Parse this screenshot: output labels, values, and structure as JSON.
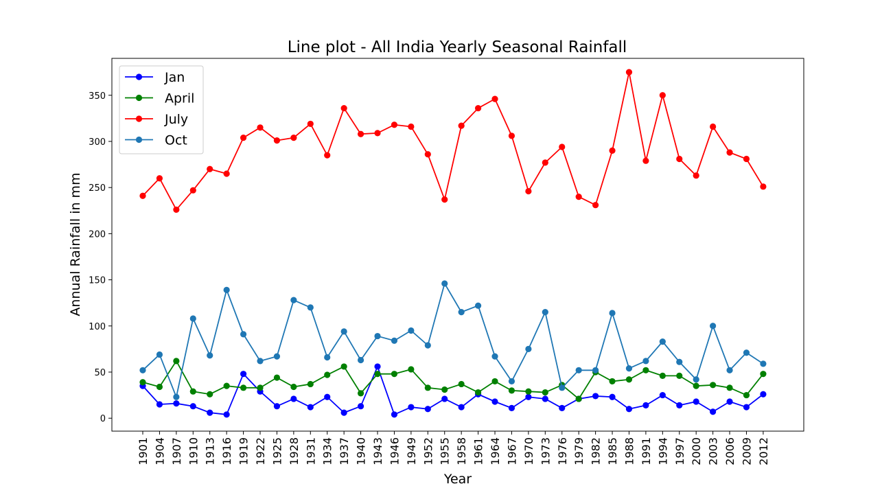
{
  "chart_data": {
    "type": "line",
    "title": "Line plot - All India Yearly Seasonal Rainfall",
    "xlabel": "Year",
    "ylabel": "Annual Rainfall in mm",
    "ylim": [
      -14,
      390
    ],
    "yticks": [
      0,
      50,
      100,
      150,
      200,
      250,
      300,
      350
    ],
    "grid": false,
    "legend_position": "upper-left",
    "x": [
      "1901",
      "1904",
      "1907",
      "1910",
      "1913",
      "1916",
      "1919",
      "1922",
      "1925",
      "1928",
      "1931",
      "1934",
      "1937",
      "1940",
      "1943",
      "1946",
      "1949",
      "1952",
      "1955",
      "1958",
      "1961",
      "1964",
      "1967",
      "1970",
      "1973",
      "1976",
      "1979",
      "1982",
      "1985",
      "1988",
      "1991",
      "1994",
      "1997",
      "2000",
      "2003",
      "2006",
      "2009",
      "2012"
    ],
    "series": [
      {
        "name": "Jan",
        "color": "#0000ff",
        "values": [
          35,
          15,
          16,
          13,
          6,
          4,
          48,
          29,
          13,
          21,
          12,
          23,
          6,
          13,
          56,
          4,
          12,
          10,
          21,
          12,
          26,
          18,
          11,
          23,
          21,
          11,
          21,
          24,
          23,
          10,
          14,
          25,
          14,
          18,
          7,
          18,
          12,
          26
        ]
      },
      {
        "name": "April",
        "color": "#008000",
        "values": [
          39,
          34,
          62,
          29,
          26,
          35,
          33,
          33,
          44,
          34,
          37,
          47,
          56,
          27,
          48,
          48,
          53,
          33,
          31,
          37,
          28,
          40,
          30,
          29,
          28,
          36,
          21,
          50,
          40,
          42,
          52,
          46,
          46,
          35,
          36,
          33,
          25,
          48
        ]
      },
      {
        "name": "July",
        "color": "#ff0000",
        "values": [
          241,
          260,
          226,
          247,
          270,
          265,
          304,
          315,
          301,
          304,
          319,
          285,
          336,
          308,
          309,
          318,
          316,
          286,
          237,
          317,
          336,
          346,
          306,
          246,
          277,
          294,
          240,
          231,
          290,
          375,
          279,
          350,
          281,
          263,
          316,
          288,
          281,
          251
        ]
      },
      {
        "name": "Oct",
        "color": "#1f77b4",
        "values": [
          52,
          69,
          23,
          108,
          68,
          139,
          91,
          62,
          67,
          128,
          120,
          66,
          94,
          63,
          89,
          84,
          95,
          79,
          146,
          115,
          122,
          67,
          40,
          75,
          115,
          33,
          52,
          52,
          114,
          54,
          62,
          83,
          61,
          42,
          100,
          52,
          71,
          59
        ]
      }
    ]
  }
}
